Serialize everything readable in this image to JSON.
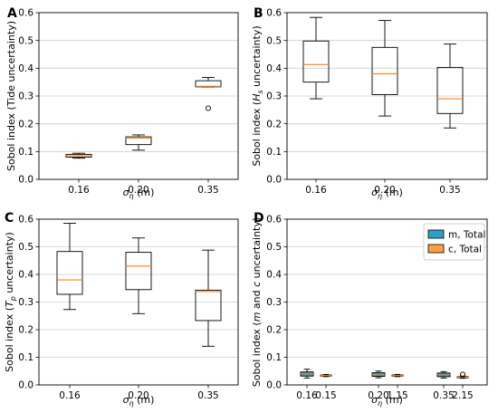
{
  "figure": {
    "background": "#ffffff",
    "colors": {
      "median": "#ff7f0e",
      "box_edge": "#000000",
      "grid": "#cfcfcf",
      "m_total": "#2f9ec9",
      "c_total": "#ff9f45"
    }
  },
  "chart_data": [
    {
      "panel": "A",
      "type": "box",
      "categories": [
        "0.16",
        "0.20",
        "0.35"
      ],
      "xlabel": "σ_η (m)",
      "xlabel_main": "σ",
      "xlabel_sub": "η",
      "xlabel_rest": " (m)",
      "ylabel": "Sobol index (Tide uncertainty)",
      "ylabel_parts": [
        "Sobol index (Tide uncertainty)"
      ],
      "ylim": [
        0,
        0.6
      ],
      "yticks": [
        "0.0",
        "0.1",
        "0.2",
        "0.3",
        "0.4",
        "0.5",
        "0.6"
      ],
      "ytick_values": [
        0,
        0.1,
        0.2,
        0.3,
        0.4,
        0.5,
        0.6
      ],
      "grid": "horizontal",
      "boxes": [
        {
          "whisker_low": 0.076,
          "q1": 0.08,
          "median": 0.085,
          "q3": 0.09,
          "whisker_high": 0.094,
          "outliers": []
        },
        {
          "whisker_low": 0.105,
          "q1": 0.125,
          "median": 0.148,
          "q3": 0.153,
          "whisker_high": 0.16,
          "outliers": []
        },
        {
          "whisker_low": 0.333,
          "q1": 0.333,
          "median": 0.335,
          "q3": 0.355,
          "whisker_high": 0.367,
          "outliers": [
            0.256
          ]
        }
      ]
    },
    {
      "panel": "B",
      "type": "box",
      "categories": [
        "0.16",
        "0.20",
        "0.35"
      ],
      "xlabel": "σ_η (m)",
      "xlabel_main": "σ",
      "xlabel_sub": "η",
      "xlabel_rest": " (m)",
      "ylabel": "Sobol index (H_s uncertainty)",
      "ylabel_parts": [
        "Sobol index (",
        "H",
        "s",
        " uncertainty)"
      ],
      "ylim": [
        0,
        0.6
      ],
      "yticks": [
        "0.0",
        "0.1",
        "0.2",
        "0.3",
        "0.4",
        "0.5",
        "0.6"
      ],
      "ytick_values": [
        0,
        0.1,
        0.2,
        0.3,
        0.4,
        0.5,
        0.6
      ],
      "grid": "horizontal",
      "boxes": [
        {
          "whisker_low": 0.29,
          "q1": 0.35,
          "median": 0.413,
          "q3": 0.498,
          "whisker_high": 0.583,
          "outliers": []
        },
        {
          "whisker_low": 0.228,
          "q1": 0.305,
          "median": 0.38,
          "q3": 0.475,
          "whisker_high": 0.572,
          "outliers": []
        },
        {
          "whisker_low": 0.185,
          "q1": 0.237,
          "median": 0.29,
          "q3": 0.403,
          "whisker_high": 0.487,
          "outliers": []
        }
      ]
    },
    {
      "panel": "C",
      "type": "box",
      "categories": [
        "0.16",
        "0.20",
        "0.35"
      ],
      "xlabel": "σ_η (m)",
      "xlabel_main": "σ",
      "xlabel_sub": "η",
      "xlabel_rest": " (m)",
      "ylabel": "Sobol index (T_p uncertainty)",
      "ylabel_parts": [
        "Sobol index (",
        "T",
        "p",
        " uncertainty)"
      ],
      "ylim": [
        0,
        0.6
      ],
      "yticks": [
        "0.0",
        "0.1",
        "0.2",
        "0.3",
        "0.4",
        "0.5",
        "0.6"
      ],
      "ytick_values": [
        0,
        0.1,
        0.2,
        0.3,
        0.4,
        0.5,
        0.6
      ],
      "grid": "horizontal",
      "boxes": [
        {
          "whisker_low": 0.273,
          "q1": 0.328,
          "median": 0.38,
          "q3": 0.483,
          "whisker_high": 0.585,
          "outliers": []
        },
        {
          "whisker_low": 0.258,
          "q1": 0.345,
          "median": 0.43,
          "q3": 0.48,
          "whisker_high": 0.532,
          "outliers": []
        },
        {
          "whisker_low": 0.14,
          "q1": 0.233,
          "median": 0.338,
          "q3": 0.343,
          "whisker_high": 0.488,
          "outliers": []
        }
      ]
    },
    {
      "panel": "D",
      "type": "box",
      "categories": [
        "0.16",
        "0.15",
        "0.20",
        "1.15",
        "0.35",
        "2.15"
      ],
      "xlabel": "σ_η (m)",
      "xlabel_main": "σ",
      "xlabel_sub": "η",
      "xlabel_rest": " (m)",
      "ylabel": "Sobol index (m and c uncertainty)",
      "ylabel_parts": [
        "Sobol index (",
        "m",
        " and ",
        "c",
        " uncertainty)"
      ],
      "ylim": [
        0,
        0.6
      ],
      "yticks": [
        "0.0",
        "0.1",
        "0.2",
        "0.3",
        "0.4",
        "0.5",
        "0.6"
      ],
      "ytick_values": [
        0,
        0.1,
        0.2,
        0.3,
        0.4,
        0.5,
        0.6
      ],
      "grid": "horizontal",
      "legend": {
        "position": "top-right",
        "entries": [
          "m, Total",
          "c, Total"
        ]
      },
      "series": [
        {
          "name": "m, Total",
          "color": "#2f9ec9",
          "boxes": [
            {
              "whisker_low": 0.025,
              "q1": 0.032,
              "median": 0.04,
              "q3": 0.047,
              "whisker_high": 0.057,
              "outliers": []
            },
            {
              "whisker_low": 0.026,
              "q1": 0.031,
              "median": 0.037,
              "q3": 0.044,
              "whisker_high": 0.05,
              "outliers": []
            },
            {
              "whisker_low": 0.025,
              "q1": 0.03,
              "median": 0.037,
              "q3": 0.043,
              "whisker_high": 0.048,
              "outliers": []
            }
          ]
        },
        {
          "name": "c, Total",
          "color": "#ff9f45",
          "boxes": [
            {
              "whisker_low": 0.03,
              "q1": 0.032,
              "median": 0.034,
              "q3": 0.036,
              "whisker_high": 0.038,
              "outliers": []
            },
            {
              "whisker_low": 0.03,
              "q1": 0.032,
              "median": 0.034,
              "q3": 0.036,
              "whisker_high": 0.038,
              "outliers": []
            },
            {
              "whisker_low": 0.024,
              "q1": 0.026,
              "median": 0.028,
              "q3": 0.03,
              "whisker_high": 0.032,
              "outliers": [
                0.038
              ]
            }
          ]
        }
      ]
    }
  ]
}
